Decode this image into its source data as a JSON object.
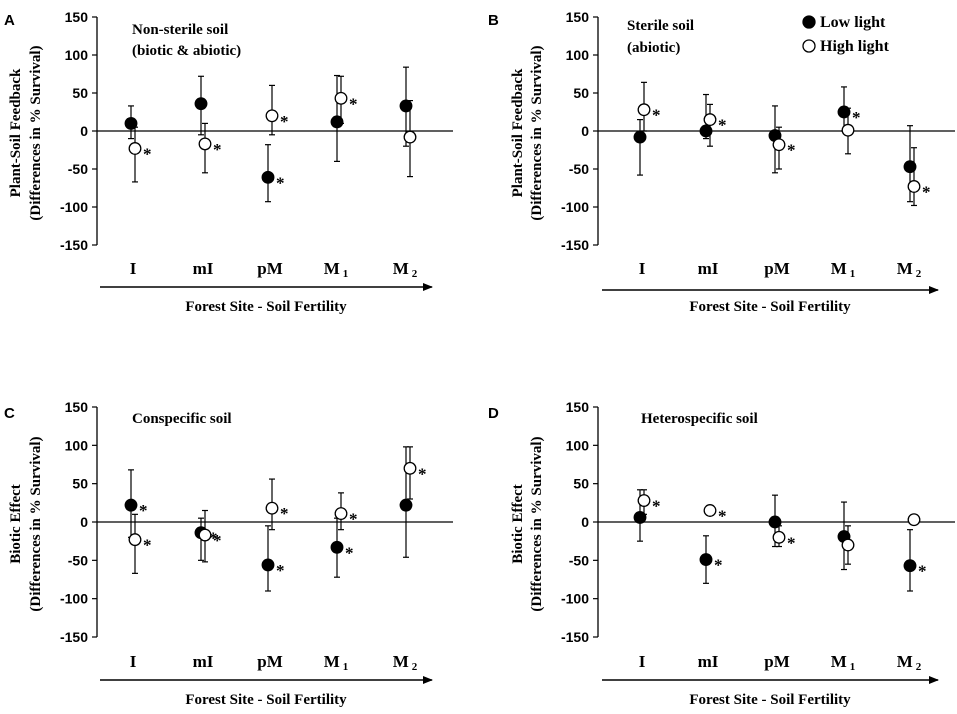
{
  "colors": {
    "low": "#000000",
    "high": "#ffffff",
    "stroke": "#000000"
  },
  "legend": [
    {
      "key": "low",
      "label": "Low light"
    },
    {
      "key": "high",
      "label": "High light"
    }
  ],
  "chart_data": [
    {
      "panel": "A",
      "type": "scatter",
      "annotation": [
        "Non-sterile soil",
        "(biotic & abiotic)"
      ],
      "ylabel": [
        "Plant-Soil Feedback",
        "(Differences in % Survival)"
      ],
      "xlabel": "Forest Site - Soil Fertility",
      "ylim": [
        -150,
        150
      ],
      "yticks": [
        150,
        100,
        50,
        0,
        -50,
        -100,
        -150
      ],
      "categories": [
        {
          "main": "I",
          "sub": ""
        },
        {
          "main": "mI",
          "sub": ""
        },
        {
          "main": "pM",
          "sub": ""
        },
        {
          "main": "M",
          "sub": "1"
        },
        {
          "main": "M",
          "sub": "2"
        }
      ],
      "series": [
        {
          "name": "Low light",
          "key": "low",
          "values": [
            10,
            36,
            -61,
            12,
            33
          ],
          "err_low": [
            -10,
            -5,
            -93,
            -40,
            -20
          ],
          "err_high": [
            33,
            72,
            -18,
            73,
            84
          ],
          "sig": [
            false,
            false,
            true,
            false,
            false
          ]
        },
        {
          "name": "High light",
          "key": "high",
          "values": [
            -23,
            -17,
            20,
            43,
            -8
          ],
          "err_low": [
            -67,
            -55,
            -5,
            10,
            -60
          ],
          "err_high": [
            5,
            10,
            60,
            72,
            40
          ],
          "sig": [
            true,
            true,
            true,
            true,
            false
          ]
        }
      ]
    },
    {
      "panel": "B",
      "type": "scatter",
      "annotation": [
        "Sterile soil",
        "(abiotic)"
      ],
      "ylabel": [
        "Plant-Soil Feedback",
        "(Differences in % Survival)"
      ],
      "xlabel": "Forest Site - Soil Fertility",
      "ylim": [
        -150,
        150
      ],
      "yticks": [
        150,
        100,
        50,
        0,
        -50,
        -100,
        -150
      ],
      "show_legend": true,
      "categories": [
        {
          "main": "I",
          "sub": ""
        },
        {
          "main": "mI",
          "sub": ""
        },
        {
          "main": "pM",
          "sub": ""
        },
        {
          "main": "M",
          "sub": "1"
        },
        {
          "main": "M",
          "sub": "2"
        }
      ],
      "series": [
        {
          "name": "Low light",
          "key": "low",
          "values": [
            -8,
            0,
            -6,
            25,
            -47
          ],
          "err_low": [
            -58,
            -10,
            -55,
            0,
            -93
          ],
          "err_high": [
            15,
            48,
            33,
            58,
            7
          ],
          "sig": [
            false,
            false,
            false,
            true,
            false
          ]
        },
        {
          "name": "High light",
          "key": "high",
          "values": [
            28,
            15,
            -18,
            1,
            -73
          ],
          "err_low": [
            0,
            -20,
            -50,
            -30,
            -98
          ],
          "err_high": [
            64,
            35,
            5,
            30,
            -22
          ],
          "sig": [
            true,
            true,
            true,
            false,
            true
          ]
        }
      ]
    },
    {
      "panel": "C",
      "type": "scatter",
      "annotation": [
        "Conspecific soil"
      ],
      "ylabel": [
        "Biotic Effect",
        "(Differences in % Survival)"
      ],
      "xlabel": "Forest Site - Soil Fertility",
      "ylim": [
        -150,
        150
      ],
      "yticks": [
        150,
        100,
        50,
        0,
        -50,
        -100,
        -150
      ],
      "categories": [
        {
          "main": "I",
          "sub": ""
        },
        {
          "main": "mI",
          "sub": ""
        },
        {
          "main": "pM",
          "sub": ""
        },
        {
          "main": "M",
          "sub": "1"
        },
        {
          "main": "M",
          "sub": "2"
        }
      ],
      "series": [
        {
          "name": "Low light",
          "key": "low",
          "values": [
            22,
            -14,
            -56,
            -33,
            22
          ],
          "err_low": [
            -20,
            -50,
            -90,
            -72,
            -46
          ],
          "err_high": [
            68,
            5,
            -5,
            5,
            98
          ],
          "sig": [
            true,
            true,
            true,
            true,
            false
          ]
        },
        {
          "name": "High light",
          "key": "high",
          "values": [
            -23,
            -17,
            18,
            11,
            70
          ],
          "err_low": [
            -67,
            -52,
            -10,
            -10,
            30
          ],
          "err_high": [
            10,
            15,
            56,
            38,
            98
          ],
          "sig": [
            true,
            true,
            true,
            true,
            true
          ]
        }
      ]
    },
    {
      "panel": "D",
      "type": "scatter",
      "annotation": [
        "Heterospecific soil"
      ],
      "ylabel": [
        "Biotic Effect",
        "(Differences in % Survival)"
      ],
      "xlabel": "Forest Site - Soil Fertility",
      "ylim": [
        -150,
        150
      ],
      "yticks": [
        150,
        100,
        50,
        0,
        -50,
        -100,
        -150
      ],
      "categories": [
        {
          "main": "I",
          "sub": ""
        },
        {
          "main": "mI",
          "sub": ""
        },
        {
          "main": "pM",
          "sub": ""
        },
        {
          "main": "M",
          "sub": "1"
        },
        {
          "main": "M",
          "sub": "2"
        }
      ],
      "series": [
        {
          "name": "Low light",
          "key": "low",
          "values": [
            6,
            -49,
            0,
            -19,
            -57
          ],
          "err_low": [
            -25,
            -80,
            -32,
            -62,
            -90
          ],
          "err_high": [
            42,
            -18,
            35,
            26,
            -10
          ],
          "sig": [
            false,
            true,
            false,
            false,
            true
          ]
        },
        {
          "name": "High light",
          "key": "high",
          "values": [
            28,
            15,
            -20,
            -30,
            3
          ],
          "err_low": [
            10,
            15,
            -32,
            -55,
            3
          ],
          "err_high": [
            42,
            15,
            -5,
            -5,
            3
          ],
          "sig": [
            true,
            true,
            true,
            false,
            false
          ]
        }
      ]
    }
  ]
}
